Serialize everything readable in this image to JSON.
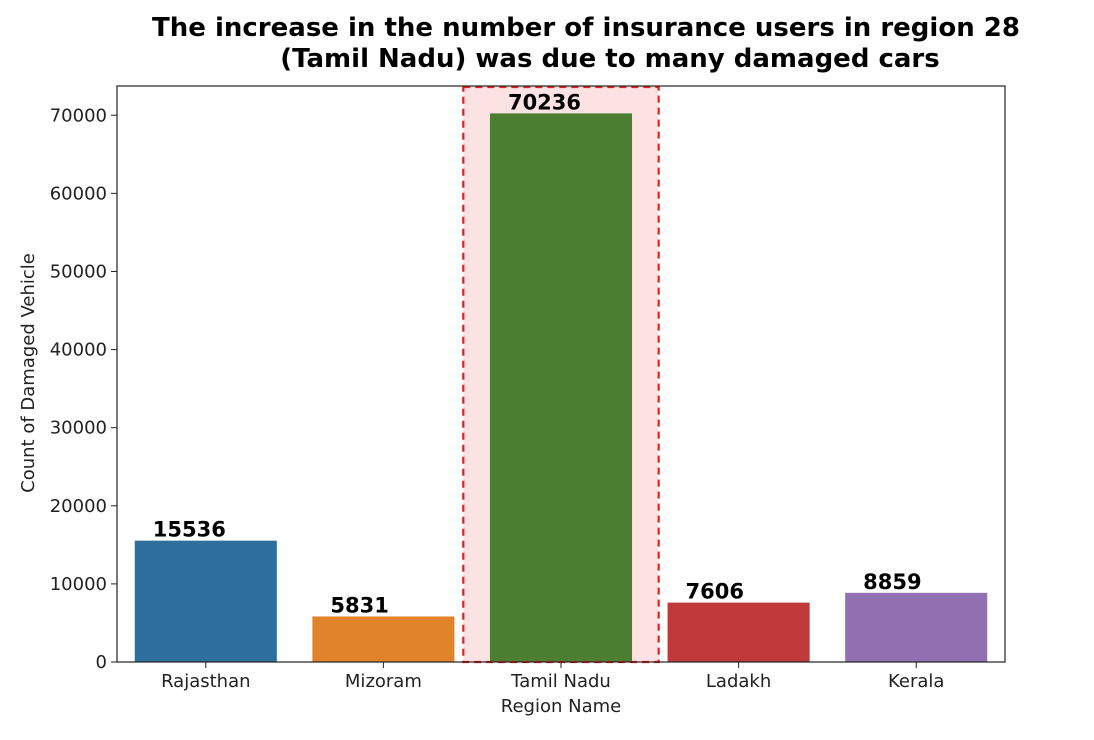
{
  "chart_data": {
    "type": "bar",
    "title_lines": [
      "The increase in the number of insurance users in region 28",
      "(Tamil Nadu) was due to many damaged cars"
    ],
    "xlabel": "Region Name",
    "ylabel": "Count of Damaged Vehicle",
    "categories": [
      "Rajasthan",
      "Mizoram",
      "Tamil Nadu",
      "Ladakh",
      "Kerala"
    ],
    "values": [
      15536,
      5831,
      70236,
      7606,
      8859
    ],
    "data_labels": [
      "15536",
      "5831",
      "70236",
      "7606",
      "8859"
    ],
    "colors": [
      "#2f6f9e",
      "#e0832b",
      "#4a7f31",
      "#c13a3a",
      "#9270b2"
    ],
    "yticks": [
      0,
      10000,
      20000,
      30000,
      40000,
      50000,
      60000,
      70000
    ],
    "ylim": [
      0,
      73745
    ],
    "grid": false,
    "highlight": {
      "category": "Tamil Nadu",
      "fill": "#fde2e4",
      "stroke": "#e8201b",
      "style": "dashed"
    }
  }
}
